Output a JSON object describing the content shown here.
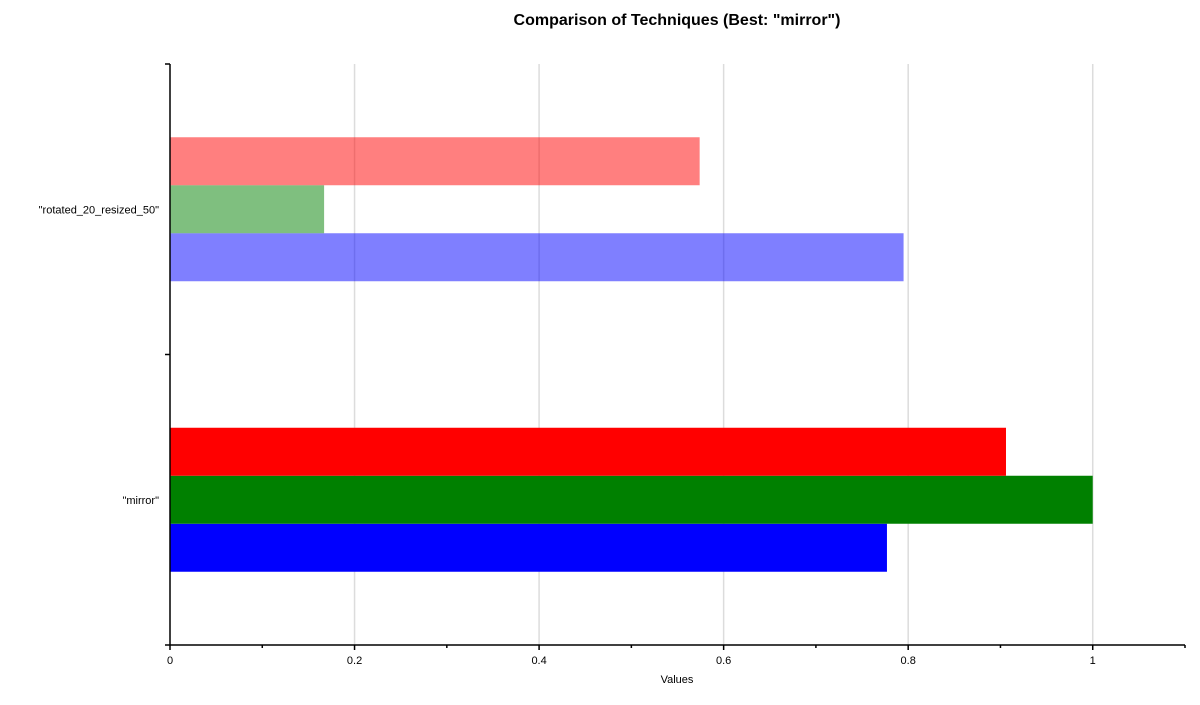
{
  "chart_data": {
    "type": "bar",
    "orientation": "horizontal",
    "title": "Comparison of Techniques (Best: \"mirror\")",
    "xlabel": "Values",
    "ylabel": "",
    "xlim": [
      0,
      1.1
    ],
    "xticks": [
      0,
      0.2,
      0.4,
      0.6,
      0.8,
      1
    ],
    "grid": true,
    "legend": false,
    "categories": [
      "\"mirror\"",
      "\"rotated_20_resized_50\""
    ],
    "series": [
      {
        "color": "#0000ff",
        "values": [
          0.777,
          0.795
        ]
      },
      {
        "color": "#008000",
        "values": [
          1.0,
          0.167
        ]
      },
      {
        "color": "#ff0000",
        "values": [
          0.906,
          0.574
        ]
      }
    ],
    "category_opacity": [
      1.0,
      0.5
    ]
  }
}
